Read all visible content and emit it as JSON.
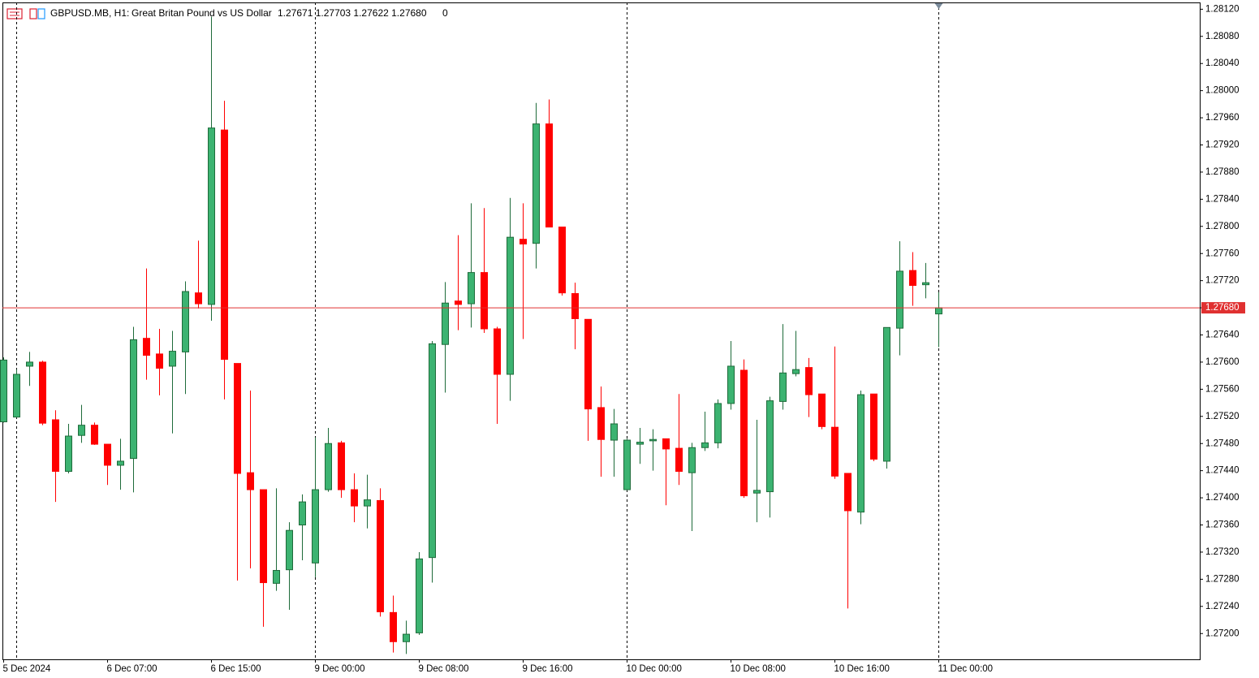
{
  "chart_data": {
    "type": "candlestick",
    "header": {
      "symbol": "GBPUSD.MB, H1:",
      "description": "Great Britan Pound vs US Dollar",
      "quote": "1.27671 1.27703 1.27622 1.27680",
      "spread": "0"
    },
    "categories": [
      "5 Dec 2024",
      null,
      null,
      null,
      null,
      null,
      null,
      null,
      "6 Dec 07:00",
      null,
      null,
      null,
      null,
      null,
      null,
      null,
      "6 Dec 15:00",
      null,
      null,
      null,
      null,
      null,
      null,
      null,
      "9 Dec 00:00",
      null,
      null,
      null,
      null,
      null,
      null,
      null,
      "9 Dec 08:00",
      null,
      null,
      null,
      null,
      null,
      null,
      null,
      "9 Dec 16:00",
      null,
      null,
      null,
      null,
      null,
      null,
      null,
      "10 Dec 00:00",
      null,
      null,
      null,
      null,
      null,
      null,
      null,
      "10 Dec 08:00",
      null,
      null,
      null,
      null,
      null,
      null,
      null,
      "10 Dec 16:00",
      null,
      null,
      null,
      null,
      null,
      null,
      null,
      "11 Dec 00:00"
    ],
    "open": [
      1.27512,
      1.27519,
      1.27594,
      1.276,
      1.27515,
      1.27439,
      1.27492,
      1.27507,
      1.27479,
      1.27448,
      1.27458,
      1.27635,
      1.27612,
      1.27594,
      1.27615,
      1.27702,
      1.27685,
      1.27942,
      1.27598,
      1.27437,
      1.27412,
      1.27274,
      1.27294,
      1.2736,
      1.27304,
      1.27412,
      1.27481,
      1.27412,
      1.27388,
      1.27396,
      1.27231,
      1.27188,
      1.27201,
      1.27312,
      1.27626,
      1.2769,
      1.27686,
      1.27732,
      1.27649,
      1.27582,
      1.27781,
      1.27775,
      1.27951,
      1.27799,
      1.27701,
      1.27663,
      1.27533,
      1.27485,
      1.27412,
      1.27479,
      1.27484,
      1.27487,
      1.27473,
      1.27437,
      1.27474,
      1.27481,
      1.27539,
      1.27588,
      1.27407,
      1.27409,
      1.27542,
      1.27583,
      1.27592,
      1.27553,
      1.27504,
      1.27436,
      1.27379,
      1.27553,
      1.27454,
      1.2765,
      1.27735,
      1.27714,
      1.27671
    ],
    "high": [
      1.27607,
      1.27589,
      1.27615,
      1.27602,
      1.27529,
      1.27509,
      1.27537,
      1.27511,
      1.27479,
      1.27487,
      1.27652,
      1.27738,
      1.27649,
      1.27646,
      1.27719,
      1.27779,
      1.28109,
      1.27985,
      1.27598,
      1.27558,
      1.27412,
      1.27414,
      1.27364,
      1.27405,
      1.27489,
      1.27503,
      1.27484,
      1.27436,
      1.27434,
      1.27414,
      1.27256,
      1.27219,
      1.2732,
      1.27631,
      1.27718,
      1.27787,
      1.27834,
      1.27827,
      1.27652,
      1.27842,
      1.27834,
      1.27982,
      1.27987,
      1.27799,
      1.27717,
      1.27663,
      1.27564,
      1.27531,
      1.27487,
      1.27503,
      1.27501,
      1.27487,
      1.27553,
      1.27481,
      1.27527,
      1.27545,
      1.27631,
      1.27604,
      1.27515,
      1.27549,
      1.27656,
      1.27646,
      1.27606,
      1.27553,
      1.27623,
      1.27436,
      1.27558,
      1.27553,
      1.27651,
      1.27778,
      1.27762,
      1.27746,
      1.27703
    ],
    "low": [
      1.27511,
      1.27518,
      1.27565,
      1.27507,
      1.27394,
      1.27436,
      1.27481,
      1.27478,
      1.27419,
      1.27412,
      1.27408,
      1.27574,
      1.27551,
      1.27495,
      1.27553,
      1.27679,
      1.27661,
      1.27545,
      1.27278,
      1.27296,
      1.2721,
      1.27263,
      1.27235,
      1.27308,
      1.27283,
      1.27409,
      1.274,
      1.27364,
      1.27355,
      1.27225,
      1.27172,
      1.2717,
      1.27198,
      1.27275,
      1.27555,
      1.27647,
      1.27651,
      1.27643,
      1.27509,
      1.27543,
      1.27634,
      1.27738,
      1.27799,
      1.27698,
      1.27619,
      1.27484,
      1.27431,
      1.27431,
      1.27411,
      1.2745,
      1.2744,
      1.27389,
      1.27419,
      1.27351,
      1.27469,
      1.27473,
      1.2753,
      1.274,
      1.27364,
      1.27371,
      1.2753,
      1.27579,
      1.27519,
      1.27501,
      1.27428,
      1.27237,
      1.27361,
      1.27454,
      1.27443,
      1.2761,
      1.27683,
      1.27694,
      1.27622
    ],
    "close": [
      1.27603,
      1.27582,
      1.276,
      1.2751,
      1.27439,
      1.27491,
      1.27507,
      1.27479,
      1.27448,
      1.27454,
      1.27633,
      1.2761,
      1.27591,
      1.27616,
      1.27704,
      1.27686,
      1.27945,
      1.27604,
      1.27436,
      1.27412,
      1.27275,
      1.27293,
      1.27352,
      1.27394,
      1.27412,
      1.2748,
      1.27412,
      1.27388,
      1.27397,
      1.27232,
      1.27188,
      1.27199,
      1.2731,
      1.27627,
      1.27687,
      1.27685,
      1.27732,
      1.27649,
      1.27582,
      1.27784,
      1.27774,
      1.27951,
      1.27799,
      1.27702,
      1.27664,
      1.27531,
      1.27486,
      1.27509,
      1.27485,
      1.27482,
      1.27486,
      1.27472,
      1.27439,
      1.27474,
      1.27481,
      1.27539,
      1.27594,
      1.27403,
      1.27411,
      1.27543,
      1.27584,
      1.27589,
      1.27552,
      1.27505,
      1.27432,
      1.27381,
      1.27552,
      1.27457,
      1.27651,
      1.27734,
      1.27713,
      1.27717,
      1.2768
    ],
    "up_color": "#3cb371",
    "up_outline": "#1e6b3a",
    "down_color": "#ff0000",
    "ylim": [
      1.27162,
      1.2813
    ],
    "yticks": [
      {
        "value": 1.2812,
        "label": "1.28120"
      },
      {
        "value": 1.2808,
        "label": "1.28080"
      },
      {
        "value": 1.2804,
        "label": "1.28040"
      },
      {
        "value": 1.28,
        "label": "1.28000"
      },
      {
        "value": 1.2796,
        "label": "1.27960"
      },
      {
        "value": 1.2792,
        "label": "1.27920"
      },
      {
        "value": 1.2788,
        "label": "1.27880"
      },
      {
        "value": 1.2784,
        "label": "1.27840"
      },
      {
        "value": 1.278,
        "label": "1.27800"
      },
      {
        "value": 1.2776,
        "label": "1.27760"
      },
      {
        "value": 1.2772,
        "label": "1.27720"
      },
      {
        "value": 1.2768,
        "label": "1.27680"
      },
      {
        "value": 1.2764,
        "label": "1.27640"
      },
      {
        "value": 1.276,
        "label": "1.27600"
      },
      {
        "value": 1.2756,
        "label": "1.27560"
      },
      {
        "value": 1.2752,
        "label": "1.27520"
      },
      {
        "value": 1.2748,
        "label": "1.27480"
      },
      {
        "value": 1.2744,
        "label": "1.27440"
      },
      {
        "value": 1.274,
        "label": "1.27400"
      },
      {
        "value": 1.2736,
        "label": "1.27360"
      },
      {
        "value": 1.2732,
        "label": "1.27320"
      },
      {
        "value": 1.2728,
        "label": "1.27280"
      },
      {
        "value": 1.2724,
        "label": "1.27240"
      },
      {
        "value": 1.272,
        "label": "1.27200"
      }
    ],
    "current_price": {
      "value": 1.2768,
      "label": "1.27680"
    },
    "current_price_color": "#e03030",
    "day_separators": [
      1,
      24,
      48,
      72
    ],
    "grid": false
  }
}
